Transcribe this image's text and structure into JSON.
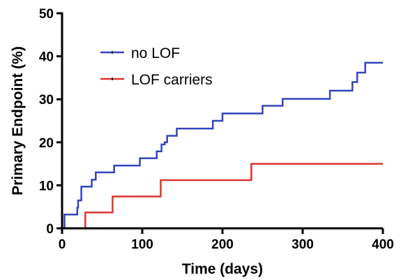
{
  "chart_data": {
    "type": "line",
    "step": true,
    "title": "",
    "xlabel": "Time (days)",
    "ylabel": "Primary Endpoint (%)",
    "xlim": [
      0,
      400
    ],
    "ylim": [
      0,
      50
    ],
    "xticks": [
      "0",
      "100",
      "200",
      "300",
      "400"
    ],
    "yticks": [
      "0",
      "10",
      "20",
      "30",
      "40",
      "50"
    ],
    "xtick_values": [
      0,
      100,
      200,
      300,
      400
    ],
    "ytick_values": [
      0,
      10,
      20,
      30,
      40,
      50
    ],
    "grid": false,
    "legend": "top-left",
    "series": [
      {
        "name": "no LOF",
        "color": "#3344bb",
        "points": [
          [
            0,
            0
          ],
          [
            3,
            3.2
          ],
          [
            19,
            4.8
          ],
          [
            20,
            6.5
          ],
          [
            24,
            9.7
          ],
          [
            37,
            11.3
          ],
          [
            42,
            13.0
          ],
          [
            65,
            14.6
          ],
          [
            97,
            16.3
          ],
          [
            118,
            17.9
          ],
          [
            124,
            19.5
          ],
          [
            128,
            20.0
          ],
          [
            131,
            21.5
          ],
          [
            143,
            23.2
          ],
          [
            188,
            25.0
          ],
          [
            200,
            26.7
          ],
          [
            250,
            28.5
          ],
          [
            275,
            30.1
          ],
          [
            334,
            32.0
          ],
          [
            362,
            34.0
          ],
          [
            368,
            36.2
          ],
          [
            378,
            38.5
          ],
          [
            400,
            38.5
          ]
        ]
      },
      {
        "name": "LOF carriers",
        "color": "#dd3333",
        "points": [
          [
            0,
            0
          ],
          [
            29,
            3.7
          ],
          [
            63,
            7.4
          ],
          [
            123,
            11.2
          ],
          [
            236,
            15.0
          ],
          [
            400,
            15.0
          ]
        ]
      }
    ]
  }
}
